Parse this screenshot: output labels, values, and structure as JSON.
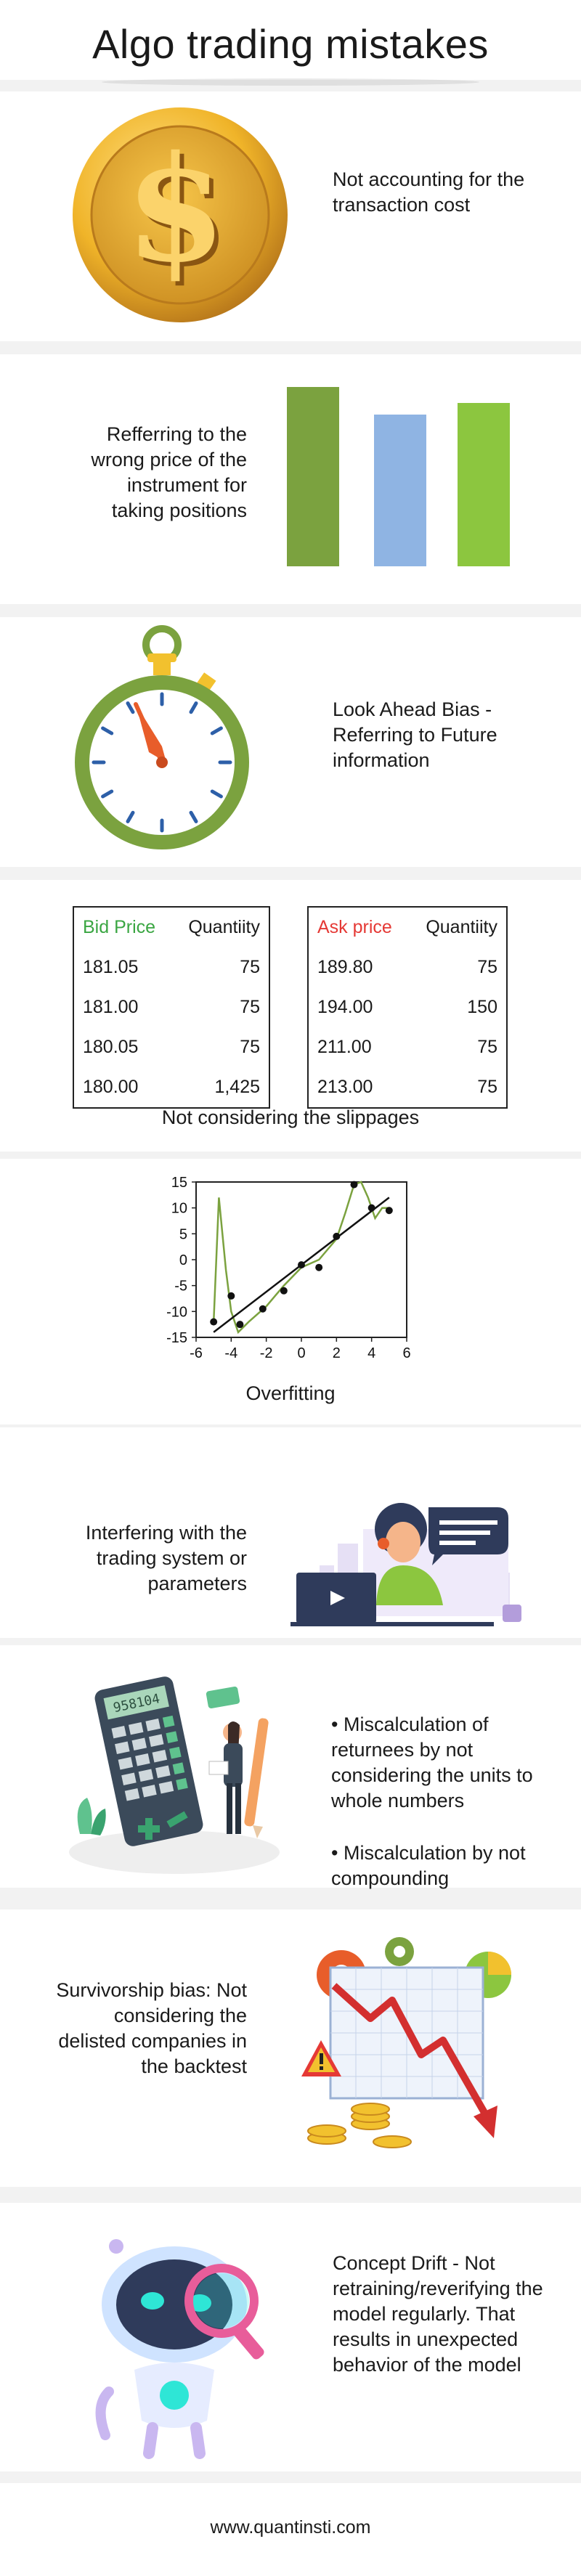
{
  "title": "Algo trading mistakes",
  "sections": {
    "transaction_cost": {
      "text": "Not accounting for the transaction cost",
      "icon": "dollar-coin-icon"
    },
    "wrong_price": {
      "text": "Refferring to the wrong price of the instrument for taking positions",
      "icon": "bar-chart-icon"
    },
    "look_ahead": {
      "text": "Look Ahead Bias - Referring to Future information",
      "icon": "stopwatch-icon"
    },
    "slippage": {
      "caption": "Not considering the slippages",
      "bid_table": {
        "headers": [
          "Bid Price",
          "Quantiity"
        ],
        "rows": [
          [
            "181.05",
            "75"
          ],
          [
            "181.00",
            "75"
          ],
          [
            "180.05",
            "75"
          ],
          [
            "180.00",
            "1,425"
          ]
        ]
      },
      "ask_table": {
        "headers": [
          "Ask price",
          "Quantiity"
        ],
        "rows": [
          [
            "189.80",
            "75"
          ],
          [
            "194.00",
            "150"
          ],
          [
            "211.00",
            "75"
          ],
          [
            "213.00",
            "75"
          ]
        ]
      }
    },
    "overfitting": {
      "caption": "Overfitting"
    },
    "interfering": {
      "text": "Interfering with the trading system or parameters",
      "icon": "support-agent-illustration"
    },
    "miscalculation": {
      "bullets": [
        "• Miscalculation of returnees by not considering the units to whole numbers",
        "• Miscalculation by not compounding"
      ],
      "calculator_display": "958104",
      "icon": "calculator-illustration"
    },
    "survivorship": {
      "text": "Survivorship bias: Not considering the delisted companies in the backtest",
      "icon": "falling-chart-warning-illustration"
    },
    "concept_drift": {
      "text": "Concept Drift - Not retraining/reverifying the model regularly. That results in unexpected behavior of the model",
      "icon": "robot-magnifier-illustration"
    }
  },
  "footer": "www.quantinsti.com",
  "colors": {
    "green_dark": "#7ba23f",
    "green_light": "#8cc63f",
    "blue_bar": "#8fb4e3",
    "bid_header": "#3aa642",
    "ask_header": "#e53935",
    "gold": "#e8a92a"
  },
  "chart_data": {
    "type": "scatter",
    "title": "Overfitting",
    "xlim": [
      -6,
      6
    ],
    "ylim": [
      -15,
      15
    ],
    "xticks": [
      -6,
      -4,
      -2,
      0,
      2,
      4,
      6
    ],
    "yticks": [
      15,
      10,
      5,
      0,
      -5,
      -10,
      -15
    ],
    "points": [
      [
        -5,
        -12
      ],
      [
        -4,
        -7
      ],
      [
        -3.5,
        -12.5
      ],
      [
        -2.2,
        -9.5
      ],
      [
        -1,
        -6
      ],
      [
        0,
        -1
      ],
      [
        1,
        -1.5
      ],
      [
        2,
        4.5
      ],
      [
        3,
        14.5
      ],
      [
        4,
        10
      ],
      [
        5,
        9.5
      ]
    ],
    "fit_line": [
      [
        -5,
        -14
      ],
      [
        5,
        12
      ]
    ],
    "curve": [
      [
        -5,
        -12
      ],
      [
        -4.7,
        12
      ],
      [
        -4.3,
        -2
      ],
      [
        -4,
        -10
      ],
      [
        -3.6,
        -14
      ],
      [
        -3,
        -12
      ],
      [
        -2,
        -9
      ],
      [
        -1,
        -5
      ],
      [
        0,
        -1.5
      ],
      [
        1,
        0
      ],
      [
        2,
        4
      ],
      [
        2.5,
        9
      ],
      [
        3,
        14.5
      ],
      [
        3.4,
        15
      ],
      [
        3.8,
        12
      ],
      [
        4.2,
        8
      ],
      [
        4.6,
        10
      ],
      [
        5,
        10
      ]
    ],
    "grid": false,
    "legend": "none"
  }
}
